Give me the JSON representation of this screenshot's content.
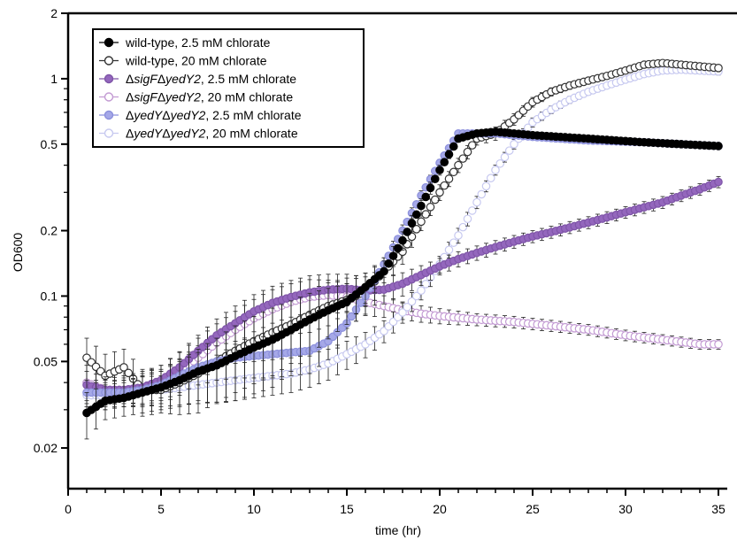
{
  "chart_data": {
    "type": "line",
    "xlabel": "time (hr)",
    "ylabel": "OD600",
    "xlim": [
      0,
      35
    ],
    "ylim": [
      0.013,
      2
    ],
    "yscale": "log",
    "x_ticks": [
      0,
      5,
      10,
      15,
      20,
      25,
      30,
      35
    ],
    "x_tick_labels": [
      "0",
      "5",
      "10",
      "15",
      "20",
      "25",
      "30",
      "35"
    ],
    "y_ticks": [
      0.02,
      0.05,
      0.1,
      0.2,
      0.5,
      1,
      2
    ],
    "y_tick_labels": [
      "0.02",
      "0.05",
      "0.1",
      "0.2",
      "0.5",
      "1",
      "2"
    ],
    "grid": false,
    "legend_position": "top-left",
    "error_bars": true,
    "series": [
      {
        "label_prefix": "",
        "label_italic": "",
        "label_suffix": "wild-type, 2.5 mM chlorate",
        "marker_fill": "#000000",
        "marker_stroke": "#000000",
        "points": [
          [
            1,
            0.029
          ],
          [
            2,
            0.033
          ],
          [
            3,
            0.034
          ],
          [
            4,
            0.036
          ],
          [
            5,
            0.038
          ],
          [
            6,
            0.041
          ],
          [
            7,
            0.045
          ],
          [
            8,
            0.048
          ],
          [
            9,
            0.053
          ],
          [
            10,
            0.058
          ],
          [
            11,
            0.063
          ],
          [
            12,
            0.07
          ],
          [
            13,
            0.078
          ],
          [
            14,
            0.086
          ],
          [
            15,
            0.094
          ],
          [
            16,
            0.11
          ],
          [
            17,
            0.13
          ],
          [
            18,
            0.18
          ],
          [
            19,
            0.26
          ],
          [
            20,
            0.38
          ],
          [
            21,
            0.53
          ],
          [
            22,
            0.56
          ],
          [
            23,
            0.57
          ],
          [
            25,
            0.55
          ],
          [
            28,
            0.53
          ],
          [
            31,
            0.51
          ],
          [
            35,
            0.49
          ]
        ],
        "err": [
          [
            1,
            0.007
          ],
          [
            2,
            0.006
          ],
          [
            3,
            0.006
          ],
          [
            5,
            0.008
          ],
          [
            7,
            0.012
          ],
          [
            9,
            0.02
          ],
          [
            11,
            0.025
          ],
          [
            13,
            0.025
          ],
          [
            15,
            0.02
          ],
          [
            17,
            0.015
          ],
          [
            19,
            0.02
          ],
          [
            21,
            0.02
          ],
          [
            25,
            0.01
          ],
          [
            30,
            0.01
          ],
          [
            35,
            0.01
          ]
        ]
      },
      {
        "label_prefix": "",
        "label_italic": "",
        "label_suffix": "wild-type, 20 mM chlorate",
        "marker_fill": "#ffffff",
        "marker_stroke": "#333333",
        "points": [
          [
            1,
            0.052
          ],
          [
            2,
            0.043
          ],
          [
            3,
            0.047
          ],
          [
            4,
            0.037
          ],
          [
            5,
            0.037
          ],
          [
            6,
            0.04
          ],
          [
            7,
            0.044
          ],
          [
            8,
            0.05
          ],
          [
            9,
            0.056
          ],
          [
            10,
            0.062
          ],
          [
            11,
            0.068
          ],
          [
            12,
            0.074
          ],
          [
            13,
            0.082
          ],
          [
            14,
            0.09
          ],
          [
            15,
            0.096
          ],
          [
            16,
            0.105
          ],
          [
            17,
            0.13
          ],
          [
            18,
            0.16
          ],
          [
            19,
            0.22
          ],
          [
            20,
            0.3
          ],
          [
            21,
            0.4
          ],
          [
            22,
            0.53
          ],
          [
            23,
            0.56
          ],
          [
            24,
            0.65
          ],
          [
            25,
            0.78
          ],
          [
            26,
            0.87
          ],
          [
            27,
            0.93
          ],
          [
            28,
            0.98
          ],
          [
            29,
            1.03
          ],
          [
            30,
            1.09
          ],
          [
            31,
            1.16
          ],
          [
            32,
            1.18
          ],
          [
            33,
            1.16
          ],
          [
            34,
            1.14
          ],
          [
            35,
            1.12
          ]
        ],
        "err": [
          [
            1,
            0.012
          ],
          [
            3,
            0.01
          ],
          [
            5,
            0.008
          ],
          [
            7,
            0.015
          ],
          [
            9,
            0.02
          ],
          [
            11,
            0.025
          ],
          [
            13,
            0.025
          ],
          [
            15,
            0.025
          ],
          [
            17,
            0.02
          ],
          [
            19,
            0.02
          ],
          [
            21,
            0.03
          ],
          [
            23,
            0.04
          ],
          [
            25,
            0.04
          ],
          [
            30,
            0.03
          ],
          [
            35,
            0.04
          ]
        ]
      },
      {
        "label_prefix": "Δ",
        "label_italic": "sigF",
        "label_middle": "Δ",
        "label_italic2": "yedY2",
        "label_suffix": ", 2.5 mM chlorate",
        "marker_fill": "#9467bd",
        "marker_stroke": "#7f55a8",
        "points": [
          [
            1,
            0.039
          ],
          [
            2,
            0.037
          ],
          [
            3,
            0.037
          ],
          [
            4,
            0.038
          ],
          [
            5,
            0.041
          ],
          [
            6,
            0.047
          ],
          [
            7,
            0.056
          ],
          [
            8,
            0.066
          ],
          [
            9,
            0.075
          ],
          [
            10,
            0.085
          ],
          [
            11,
            0.093
          ],
          [
            12,
            0.099
          ],
          [
            13,
            0.104
          ],
          [
            14,
            0.107
          ],
          [
            15,
            0.108
          ],
          [
            16,
            0.106
          ],
          [
            17,
            0.107
          ],
          [
            18,
            0.114
          ],
          [
            19,
            0.125
          ],
          [
            20,
            0.137
          ],
          [
            21,
            0.148
          ],
          [
            22,
            0.158
          ],
          [
            23,
            0.168
          ],
          [
            24,
            0.178
          ],
          [
            25,
            0.188
          ],
          [
            26,
            0.197
          ],
          [
            27,
            0.207
          ],
          [
            28,
            0.218
          ],
          [
            29,
            0.23
          ],
          [
            30,
            0.243
          ],
          [
            31,
            0.256
          ],
          [
            32,
            0.27
          ],
          [
            33,
            0.29
          ],
          [
            34,
            0.31
          ],
          [
            35,
            0.335
          ]
        ],
        "err": [
          [
            1,
            0.006
          ],
          [
            3,
            0.005
          ],
          [
            5,
            0.007
          ],
          [
            7,
            0.01
          ],
          [
            9,
            0.015
          ],
          [
            11,
            0.018
          ],
          [
            13,
            0.02
          ],
          [
            15,
            0.018
          ],
          [
            17,
            0.015
          ],
          [
            20,
            0.012
          ],
          [
            25,
            0.012
          ],
          [
            30,
            0.015
          ],
          [
            35,
            0.02
          ]
        ]
      },
      {
        "label_prefix": "Δ",
        "label_italic": "sigF",
        "label_middle": "Δ",
        "label_italic2": "yedY2",
        "label_suffix": ", 20 mM chlorate",
        "marker_fill": "#ffffff",
        "marker_stroke": "#c39bd3",
        "points": [
          [
            1,
            0.04
          ],
          [
            2,
            0.037
          ],
          [
            3,
            0.037
          ],
          [
            4,
            0.038
          ],
          [
            5,
            0.04
          ],
          [
            6,
            0.045
          ],
          [
            7,
            0.052
          ],
          [
            8,
            0.061
          ],
          [
            9,
            0.07
          ],
          [
            10,
            0.079
          ],
          [
            11,
            0.087
          ],
          [
            12,
            0.094
          ],
          [
            13,
            0.099
          ],
          [
            14,
            0.101
          ],
          [
            15,
            0.099
          ],
          [
            16,
            0.094
          ],
          [
            17,
            0.09
          ],
          [
            18,
            0.086
          ],
          [
            19,
            0.083
          ],
          [
            20,
            0.081
          ],
          [
            22,
            0.078
          ],
          [
            24,
            0.076
          ],
          [
            26,
            0.073
          ],
          [
            28,
            0.07
          ],
          [
            30,
            0.066
          ],
          [
            32,
            0.063
          ],
          [
            34,
            0.06
          ],
          [
            35,
            0.06
          ]
        ],
        "err": [
          [
            1,
            0.008
          ],
          [
            3,
            0.006
          ],
          [
            5,
            0.008
          ],
          [
            7,
            0.012
          ],
          [
            9,
            0.015
          ],
          [
            11,
            0.02
          ],
          [
            13,
            0.02
          ],
          [
            15,
            0.015
          ],
          [
            18,
            0.008
          ],
          [
            22,
            0.005
          ],
          [
            28,
            0.004
          ],
          [
            35,
            0.003
          ]
        ]
      },
      {
        "label_prefix": "Δ",
        "label_italic": "yedY",
        "label_middle": "Δ",
        "label_italic2": "yedY2",
        "label_suffix": ", 2.5 mM chlorate",
        "marker_fill": "#a5a8e8",
        "marker_stroke": "#8c90dc",
        "points": [
          [
            1,
            0.036
          ],
          [
            2,
            0.036
          ],
          [
            3,
            0.036
          ],
          [
            4,
            0.037
          ],
          [
            5,
            0.039
          ],
          [
            6,
            0.043
          ],
          [
            7,
            0.047
          ],
          [
            8,
            0.05
          ],
          [
            9,
            0.052
          ],
          [
            10,
            0.053
          ],
          [
            11,
            0.054
          ],
          [
            12,
            0.055
          ],
          [
            13,
            0.056
          ],
          [
            14,
            0.062
          ],
          [
            15,
            0.075
          ],
          [
            16,
            0.1
          ],
          [
            17,
            0.14
          ],
          [
            18,
            0.2
          ],
          [
            19,
            0.29
          ],
          [
            20,
            0.41
          ],
          [
            21,
            0.56
          ],
          [
            22,
            0.56
          ],
          [
            23,
            0.56
          ],
          [
            25,
            0.54
          ],
          [
            28,
            0.52
          ],
          [
            31,
            0.51
          ],
          [
            35,
            0.49
          ]
        ],
        "err": [
          [
            1,
            0.005
          ],
          [
            3,
            0.005
          ],
          [
            5,
            0.006
          ],
          [
            7,
            0.008
          ],
          [
            9,
            0.01
          ],
          [
            11,
            0.012
          ],
          [
            13,
            0.012
          ],
          [
            15,
            0.01
          ],
          [
            17,
            0.01
          ],
          [
            19,
            0.015
          ],
          [
            21,
            0.015
          ],
          [
            25,
            0.01
          ],
          [
            30,
            0.01
          ],
          [
            35,
            0.01
          ]
        ]
      },
      {
        "label_prefix": "Δ",
        "label_italic": "yedY",
        "label_middle": "Δ",
        "label_italic2": "yedY2",
        "label_suffix": ", 20 mM chlorate",
        "marker_fill": "#ffffff",
        "marker_stroke": "#c7c9f0",
        "points": [
          [
            1,
            0.035
          ],
          [
            2,
            0.035
          ],
          [
            3,
            0.036
          ],
          [
            4,
            0.037
          ],
          [
            5,
            0.037
          ],
          [
            6,
            0.038
          ],
          [
            7,
            0.039
          ],
          [
            8,
            0.04
          ],
          [
            9,
            0.041
          ],
          [
            10,
            0.042
          ],
          [
            11,
            0.043
          ],
          [
            12,
            0.044
          ],
          [
            13,
            0.046
          ],
          [
            14,
            0.049
          ],
          [
            15,
            0.054
          ],
          [
            16,
            0.06
          ],
          [
            17,
            0.069
          ],
          [
            18,
            0.084
          ],
          [
            19,
            0.106
          ],
          [
            20,
            0.14
          ],
          [
            21,
            0.19
          ],
          [
            22,
            0.27
          ],
          [
            23,
            0.38
          ],
          [
            24,
            0.5
          ],
          [
            25,
            0.63
          ],
          [
            26,
            0.72
          ],
          [
            27,
            0.8
          ],
          [
            28,
            0.87
          ],
          [
            29,
            0.93
          ],
          [
            30,
            0.99
          ],
          [
            31,
            1.05
          ],
          [
            32,
            1.09
          ],
          [
            33,
            1.1
          ],
          [
            34,
            1.09
          ],
          [
            35,
            1.08
          ]
        ],
        "err": [
          [
            1,
            0.005
          ],
          [
            3,
            0.005
          ],
          [
            5,
            0.006
          ],
          [
            7,
            0.007
          ],
          [
            9,
            0.008
          ],
          [
            11,
            0.008
          ],
          [
            13,
            0.008
          ],
          [
            15,
            0.008
          ],
          [
            17,
            0.008
          ],
          [
            19,
            0.01
          ],
          [
            21,
            0.015
          ],
          [
            23,
            0.02
          ],
          [
            25,
            0.03
          ],
          [
            30,
            0.03
          ],
          [
            35,
            0.04
          ]
        ]
      }
    ]
  }
}
